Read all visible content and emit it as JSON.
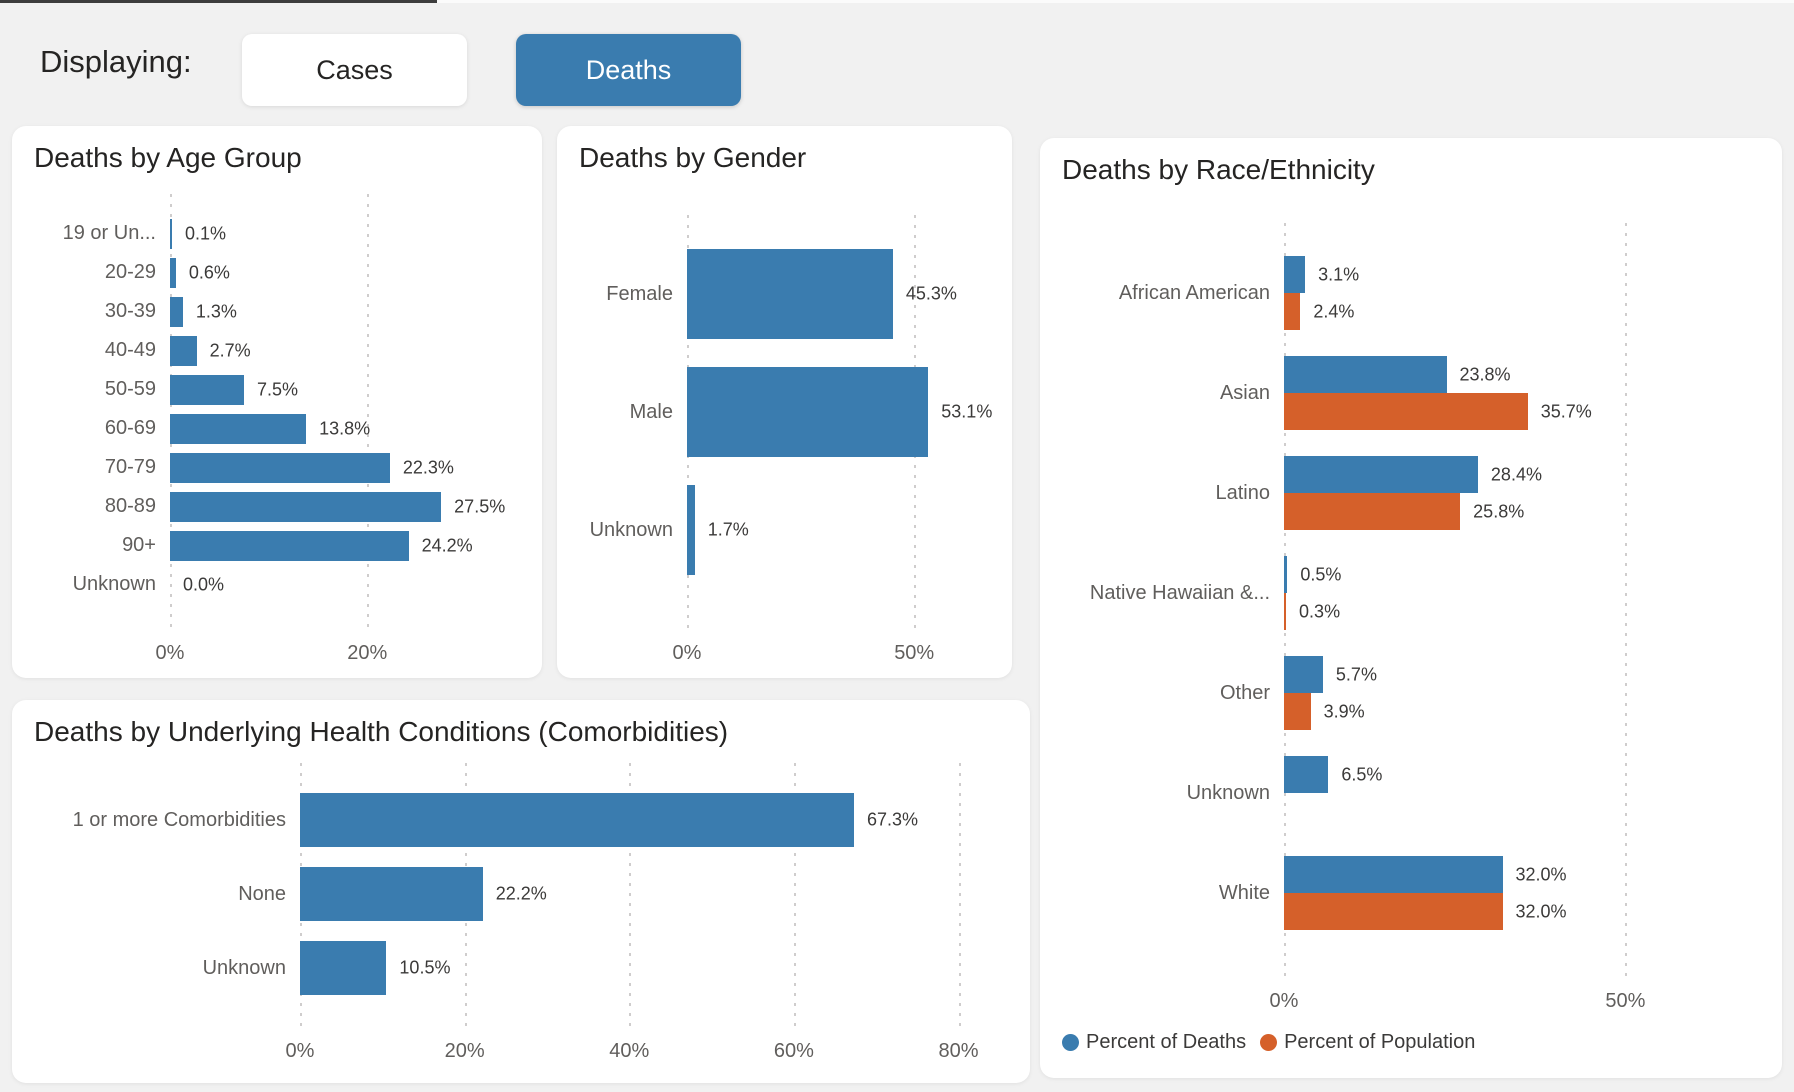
{
  "page": {
    "background": "#F1F1F1"
  },
  "colors": {
    "deaths_blue": "#3A7CAF",
    "population_orange": "#D5602A",
    "card_background": "#FFFFFF",
    "text_dark": "#252423",
    "text_gray": "#605E5C"
  },
  "header": {
    "displaying_label": "Displaying:",
    "buttons": [
      {
        "label": "Cases",
        "selected": false
      },
      {
        "label": "Deaths",
        "selected": true
      }
    ]
  },
  "chart_data": [
    {
      "id": "age",
      "type": "bar",
      "orientation": "horizontal",
      "title": "Deaths by Age Group",
      "categories": [
        "19 or Un...",
        "20-29",
        "30-39",
        "40-49",
        "50-59",
        "60-69",
        "70-79",
        "80-89",
        "90+",
        "Unknown"
      ],
      "values": [
        0.1,
        0.6,
        1.3,
        2.7,
        7.5,
        13.8,
        22.3,
        27.5,
        24.2,
        0.0
      ],
      "value_labels": [
        "0.1%",
        "0.6%",
        "1.3%",
        "2.7%",
        "7.5%",
        "13.8%",
        "22.3%",
        "27.5%",
        "24.2%",
        "0.0%"
      ],
      "bar_color": "#3A7CAF",
      "xlabel": "",
      "ylabel": "",
      "xlim": [
        0,
        36
      ],
      "x_ticks": [
        {
          "value": 0,
          "label": "0%"
        },
        {
          "value": 20,
          "label": "20%"
        }
      ],
      "grid": true
    },
    {
      "id": "gender",
      "type": "bar",
      "orientation": "horizontal",
      "title": "Deaths by Gender",
      "categories": [
        "Female",
        "Male",
        "Unknown"
      ],
      "values": [
        45.3,
        53.1,
        1.7
      ],
      "value_labels": [
        "45.3%",
        "53.1%",
        "1.7%"
      ],
      "bar_color": "#3A7CAF",
      "xlabel": "",
      "ylabel": "",
      "xlim": [
        0,
        68
      ],
      "x_ticks": [
        {
          "value": 0,
          "label": "0%"
        },
        {
          "value": 50,
          "label": "50%"
        }
      ],
      "grid": true
    },
    {
      "id": "race",
      "type": "bar",
      "orientation": "horizontal",
      "title": "Deaths by Race/Ethnicity",
      "categories": [
        "African American",
        "Asian",
        "Latino",
        "Native Hawaiian &...",
        "Other",
        "Unknown",
        "White"
      ],
      "series": [
        {
          "name": "Percent of Deaths",
          "color": "#3A7CAF",
          "values": [
            3.1,
            23.8,
            28.4,
            0.5,
            5.7,
            6.5,
            32.0
          ],
          "value_labels": [
            "3.1%",
            "23.8%",
            "28.4%",
            "0.5%",
            "5.7%",
            "6.5%",
            "32.0%"
          ]
        },
        {
          "name": "Percent of Population",
          "color": "#D5602A",
          "values": [
            2.4,
            35.7,
            25.8,
            0.3,
            3.9,
            null,
            32.0
          ],
          "value_labels": [
            "2.4%",
            "35.7%",
            "25.8%",
            "0.3%",
            "3.9%",
            null,
            "32.0%"
          ]
        }
      ],
      "legend": {
        "position": "bottom-left",
        "items": [
          "Percent of Deaths",
          "Percent of Population"
        ]
      },
      "xlabel": "",
      "ylabel": "",
      "xlim": [
        0,
        70
      ],
      "x_ticks": [
        {
          "value": 0,
          "label": "0%"
        },
        {
          "value": 50,
          "label": "50%"
        }
      ],
      "grid": true
    },
    {
      "id": "comorbidities",
      "type": "bar",
      "orientation": "horizontal",
      "title": "Deaths by Underlying Health Conditions (Comorbidities)",
      "categories": [
        "1 or more Comorbidities",
        "None",
        "Unknown"
      ],
      "values": [
        67.3,
        22.2,
        10.5
      ],
      "value_labels": [
        "67.3%",
        "22.2%",
        "10.5%"
      ],
      "bar_color": "#3A7CAF",
      "xlabel": "",
      "ylabel": "",
      "xlim": [
        0,
        82
      ],
      "x_ticks": [
        {
          "value": 0,
          "label": "0%"
        },
        {
          "value": 20,
          "label": "20%"
        },
        {
          "value": 40,
          "label": "40%"
        },
        {
          "value": 60,
          "label": "60%"
        },
        {
          "value": 80,
          "label": "80%"
        }
      ],
      "grid": true
    }
  ]
}
